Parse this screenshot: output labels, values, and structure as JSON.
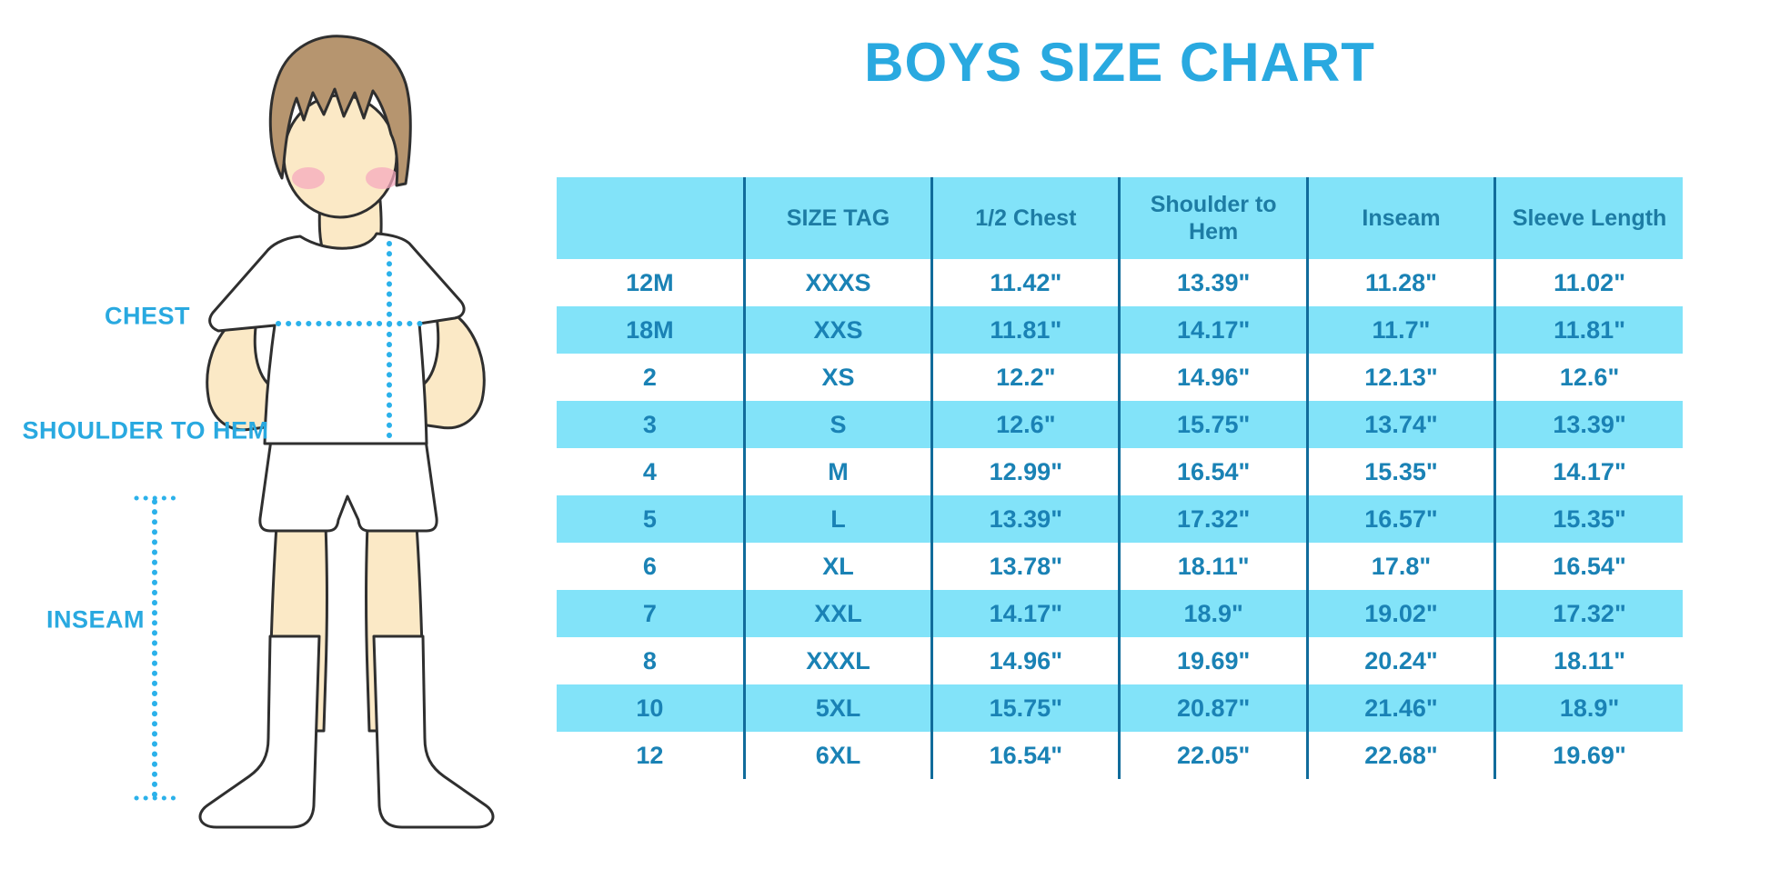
{
  "title": "BOYS SIZE CHART",
  "illustration": {
    "labels": {
      "chest": "CHEST",
      "shoulder_to_hem": "SHOULDER TO HEM",
      "inseam": "INSEAM"
    }
  },
  "table": {
    "columns": [
      "",
      "SIZE TAG",
      "1/2 Chest",
      "Shoulder to Hem",
      "Inseam",
      "Sleeve Length"
    ],
    "rows": [
      [
        "12M",
        "XXXS",
        "11.42\"",
        "13.39\"",
        "11.28\"",
        "11.02\""
      ],
      [
        "18M",
        "XXS",
        "11.81\"",
        "14.17\"",
        "11.7\"",
        "11.81\""
      ],
      [
        "2",
        "XS",
        "12.2\"",
        "14.96\"",
        "12.13\"",
        "12.6\""
      ],
      [
        "3",
        "S",
        "12.6\"",
        "15.75\"",
        "13.74\"",
        "13.39\""
      ],
      [
        "4",
        "M",
        "12.99\"",
        "16.54\"",
        "15.35\"",
        "14.17\""
      ],
      [
        "5",
        "L",
        "13.39\"",
        "17.32\"",
        "16.57\"",
        "15.35\""
      ],
      [
        "6",
        "XL",
        "13.78\"",
        "18.11\"",
        "17.8\"",
        "16.54\""
      ],
      [
        "7",
        "XXL",
        "14.17\"",
        "18.9\"",
        "19.02\"",
        "17.32\""
      ],
      [
        "8",
        "XXXL",
        "14.96\"",
        "19.69\"",
        "20.24\"",
        "18.11\""
      ],
      [
        "10",
        "5XL",
        "15.75\"",
        "20.87\"",
        "21.46\"",
        "18.9\""
      ],
      [
        "12",
        "6XL",
        "16.54\"",
        "22.05\"",
        "22.68\"",
        "19.69\""
      ]
    ]
  },
  "colors": {
    "accent": "#29A9E0",
    "stripe": "#82E3F9",
    "divider": "#116C9B",
    "header_text": "#1D7CA4",
    "cell_text": "#1A82B5",
    "dotted_line": "#2BB1EA",
    "hair": "#B6956F",
    "skin": "#FBE9C6",
    "cheek": "#F5A9BD",
    "outline": "#2F2F2F"
  }
}
